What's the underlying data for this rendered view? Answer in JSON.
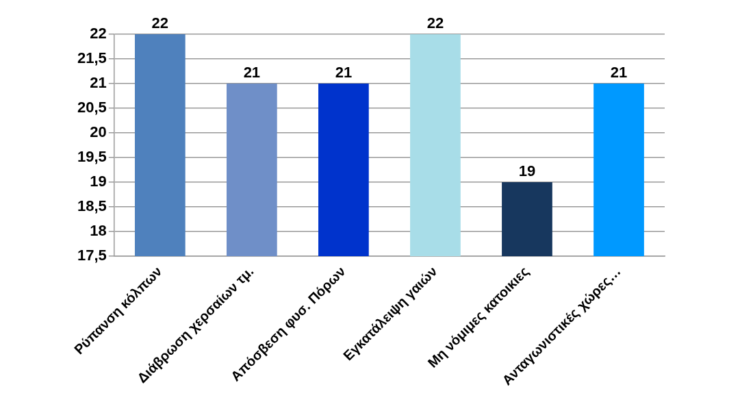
{
  "chart_data": {
    "type": "bar",
    "categories": [
      "Ρύπανση κόλπων",
      "Διάβρωση χερσαίων τμ.",
      "Απόσβεση φυσ. Πόρων",
      "Εγκατάλειψη γαιών",
      "Μη νόμιμες κατοικιες",
      "Ανταγωνιστικές χώρες…"
    ],
    "values": [
      22,
      21,
      21,
      22,
      19,
      21
    ],
    "colors": [
      "#4f81bd",
      "#6f8fc8",
      "#0033cc",
      "#a8dde8",
      "#17375e",
      "#0099ff"
    ],
    "ylim": [
      17.5,
      22
    ],
    "yticks": [
      {
        "value": 17.5,
        "label": "17,5"
      },
      18,
      {
        "value": 18.5,
        "label": "18,5"
      },
      19,
      {
        "value": 19.5,
        "label": "19,5"
      },
      20,
      {
        "value": 20.5,
        "label": "20,5"
      },
      21,
      {
        "value": 21.5,
        "label": "21,5"
      },
      22
    ],
    "grid": "y",
    "legend": false,
    "data_labels": true
  }
}
